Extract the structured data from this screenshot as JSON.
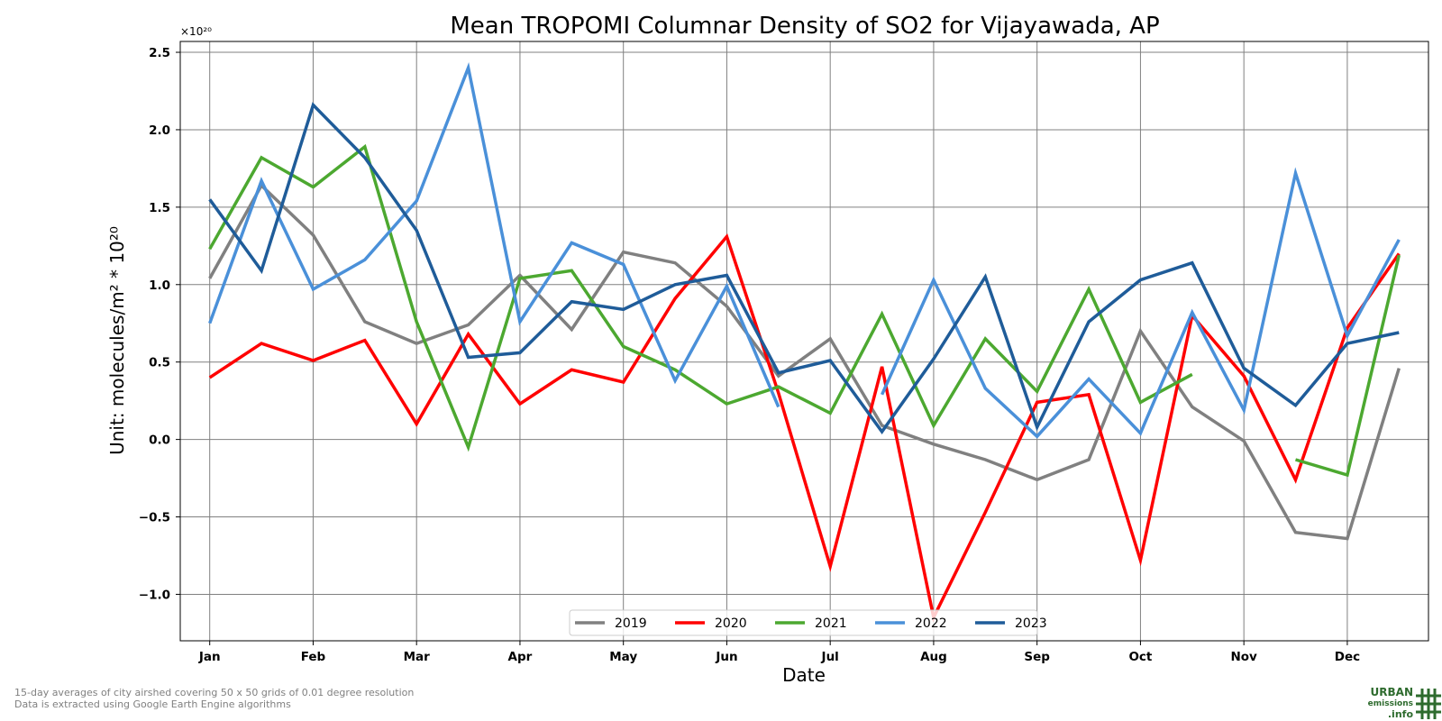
{
  "chart_data": {
    "type": "line",
    "title": "Mean TROPOMI Columnar Density of SO2 for Vijayawada, AP",
    "xlabel": "Date",
    "ylabel": "Unit: molecules/m² * 10²⁰",
    "y_offset_label": "×10²⁰",
    "ylim": [
      -1.3,
      2.57
    ],
    "yticks": [
      -1.0,
      -0.5,
      0.0,
      0.5,
      1.0,
      1.5,
      2.0,
      2.5
    ],
    "ytick_labels": [
      "−1.0",
      "−0.5",
      "0.0",
      "0.5",
      "1.0",
      "1.5",
      "2.0",
      "2.5"
    ],
    "x_points_per_month": 2,
    "xlim": [
      -0.57,
      23.57
    ],
    "xtick_positions": [
      0,
      2,
      4,
      6,
      8,
      10,
      12,
      14,
      16,
      18,
      20,
      22
    ],
    "xtick_labels": [
      "Jan",
      "Feb",
      "Mar",
      "Apr",
      "May",
      "Jun",
      "Jul",
      "Aug",
      "Sep",
      "Oct",
      "Nov",
      "Dec"
    ],
    "grid": true,
    "legend_placement": "bottom-center",
    "series": [
      {
        "name": "2019",
        "color": "#808080",
        "values": [
          1.04,
          1.64,
          1.32,
          0.76,
          0.62,
          0.74,
          1.06,
          0.71,
          1.21,
          1.14,
          0.86,
          0.41,
          0.65,
          0.09,
          -0.03,
          -0.13,
          -0.26,
          -0.13,
          0.7,
          0.21,
          -0.01,
          -0.6,
          -0.64,
          0.46
        ]
      },
      {
        "name": "2020",
        "color": "#ff0000",
        "values": [
          0.4,
          0.62,
          0.51,
          0.64,
          0.1,
          0.68,
          0.23,
          0.45,
          0.37,
          0.91,
          1.31,
          0.3,
          -0.82,
          0.47,
          -1.15,
          -0.47,
          0.24,
          0.29,
          -0.78,
          0.8,
          0.41,
          -0.26,
          0.72,
          1.2
        ]
      },
      {
        "name": "2021",
        "color": "#4ca830",
        "values": [
          1.23,
          1.82,
          1.63,
          1.89,
          0.76,
          -0.05,
          1.04,
          1.09,
          0.6,
          0.45,
          0.23,
          0.34,
          0.17,
          0.81,
          0.09,
          0.65,
          0.31,
          0.97,
          0.24,
          0.42,
          null,
          -0.13,
          -0.23,
          1.19
        ]
      },
      {
        "name": "2022",
        "color": "#4a90d9",
        "values": [
          0.75,
          1.67,
          0.97,
          1.16,
          1.54,
          2.4,
          0.76,
          1.27,
          1.13,
          0.38,
          0.99,
          0.21,
          null,
          0.29,
          1.03,
          0.33,
          0.02,
          0.39,
          0.04,
          0.82,
          0.19,
          1.72,
          0.67,
          1.29
        ]
      },
      {
        "name": "2023",
        "color": "#1f5c99",
        "values": [
          1.55,
          1.09,
          2.16,
          1.82,
          1.35,
          0.53,
          0.56,
          0.89,
          0.84,
          1.0,
          1.06,
          0.43,
          0.51,
          0.05,
          0.52,
          1.05,
          0.08,
          0.76,
          1.03,
          1.14,
          0.46,
          0.22,
          0.62,
          0.69
        ]
      }
    ]
  },
  "footnote": {
    "line1": "15-day averages of city airshed covering 50 x 50 grids of 0.01 degree resolution",
    "line2": "Data is extracted using Google Earth Engine algorithms"
  },
  "logo": {
    "line1": "URBAN",
    "line2": "emissions",
    "line3": ".info",
    "color": "#2e6b2e"
  }
}
